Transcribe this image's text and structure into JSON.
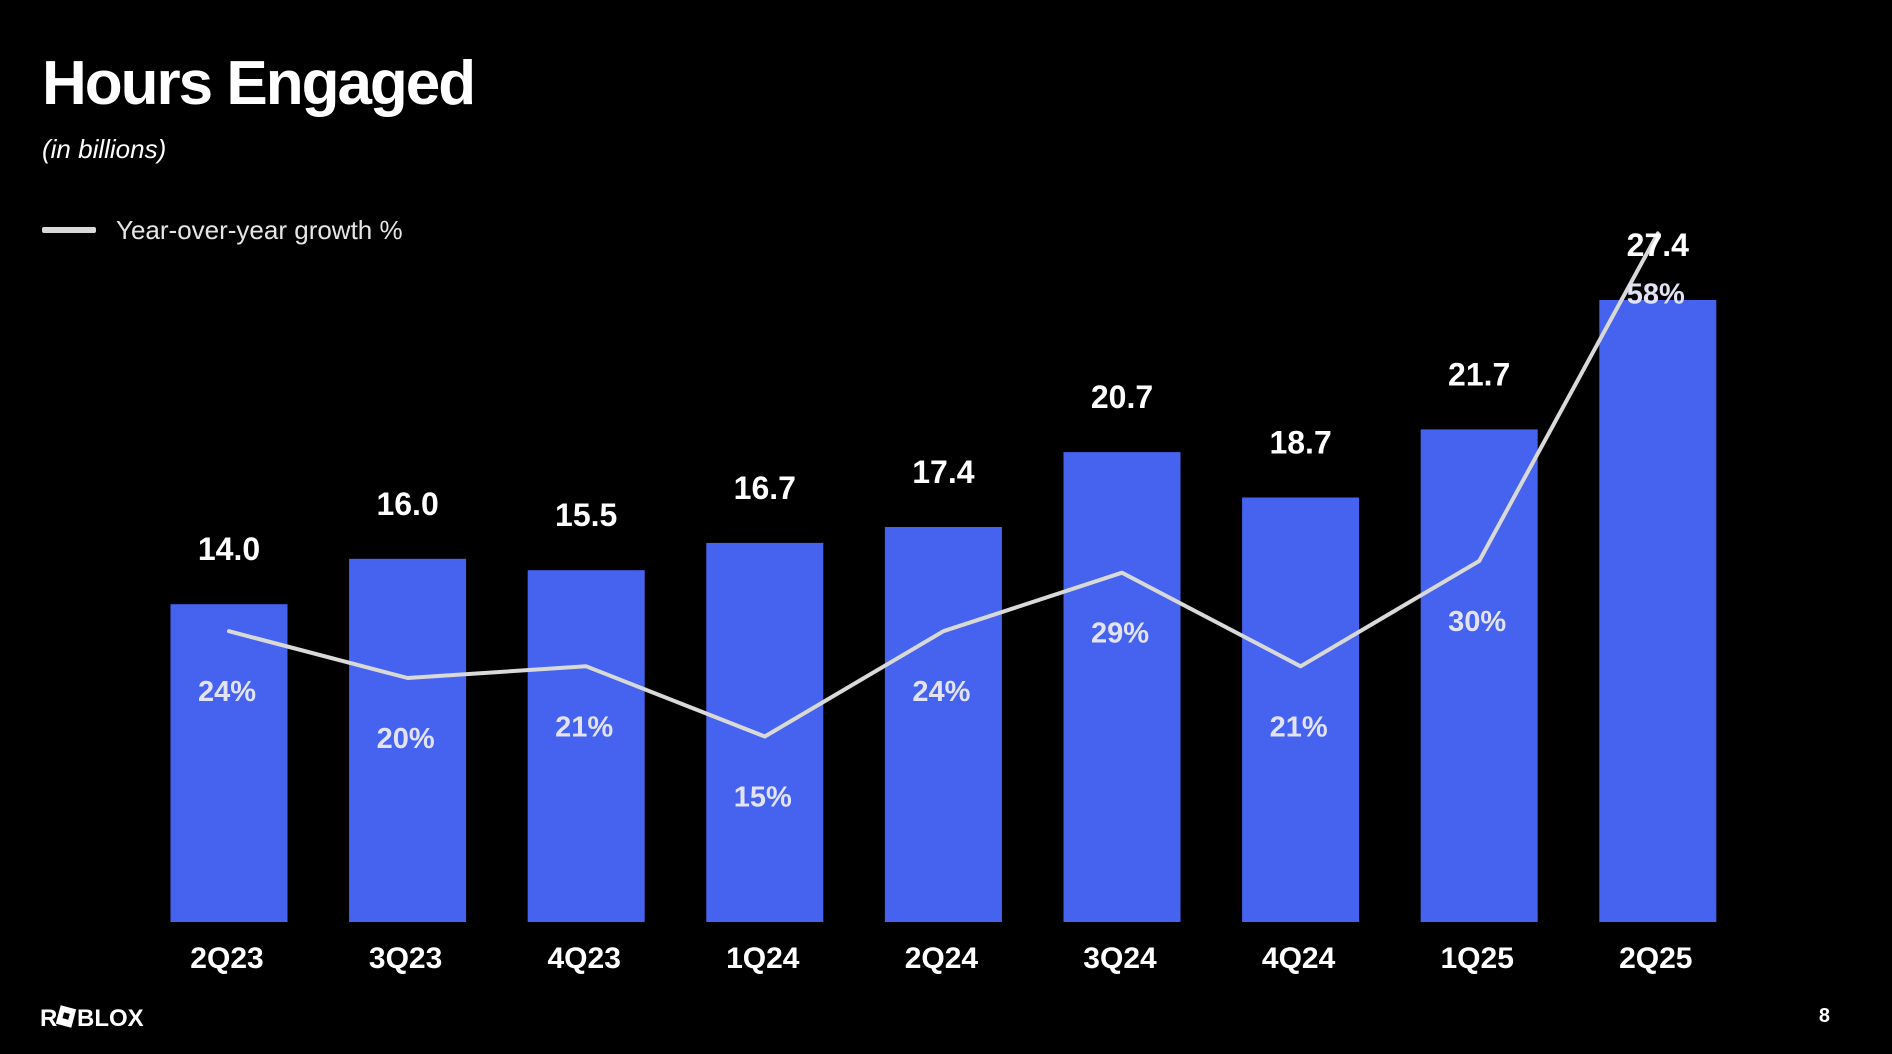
{
  "slide": {
    "title": "Hours Engaged",
    "subtitle": "(in billions)",
    "legend_label": "Year-over-year growth %",
    "page_number": "8",
    "brand": "ROBLOX"
  },
  "colors": {
    "background": "#000000",
    "bar": "#4563EE",
    "line": "#D9D9D9",
    "text": "#FFFFFF",
    "growth_label": "#E3E3F5"
  },
  "chart_data": {
    "type": "bar",
    "title": "Hours Engaged",
    "subtitle": "(in billions)",
    "categories": [
      "2Q23",
      "3Q23",
      "4Q23",
      "1Q24",
      "2Q24",
      "3Q24",
      "4Q24",
      "1Q25",
      "2Q25"
    ],
    "series": [
      {
        "type": "bar",
        "values": [
          14.0,
          16.0,
          15.5,
          16.7,
          17.4,
          20.7,
          18.7,
          21.7,
          27.4
        ],
        "labels": [
          "14.0",
          "16.0",
          "15.5",
          "16.7",
          "17.4",
          "20.7",
          "18.7",
          "21.7",
          "27.4"
        ]
      },
      {
        "name": "Year-over-year growth %",
        "type": "line",
        "values": [
          24,
          20,
          21,
          15,
          24,
          29,
          21,
          30,
          58
        ],
        "labels": [
          "24%",
          "20%",
          "21%",
          "15%",
          "24%",
          "29%",
          "21%",
          "30%",
          "58%"
        ]
      }
    ],
    "xlabel": "",
    "ylabel": "",
    "grid": false,
    "legend": "top-left"
  }
}
